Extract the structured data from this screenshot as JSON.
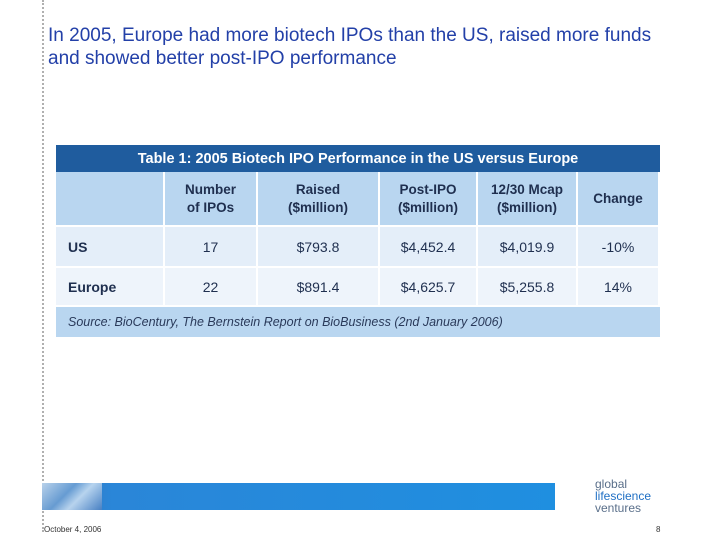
{
  "title": "In 2005, Europe had more biotech IPOs than the US, raised more funds and showed better post-IPO performance",
  "table": {
    "title": "Table 1: 2005 Biotech IPO Performance in the US versus Europe",
    "header": [
      [
        "Number",
        "of IPOs"
      ],
      [
        "Raised",
        "($million)"
      ],
      [
        "Post-IPO",
        "($million)"
      ],
      [
        "12/30 Mcap",
        "($million)"
      ],
      [
        "Change"
      ]
    ],
    "rows": [
      [
        "US",
        "17",
        "$793.8",
        "$4,452.4",
        "$4,019.9",
        "-10%"
      ],
      [
        "Europe",
        "22",
        "$891.4",
        "$4,625.7",
        "$5,255.8",
        "14%"
      ]
    ],
    "source": "Source: BioCentury, The Bernstein Report on BioBusiness (2nd January 2006)"
  },
  "footer": {
    "date": "October 4, 2006",
    "page": "8",
    "logo": [
      "global",
      "lifescience",
      "ventures"
    ]
  }
}
